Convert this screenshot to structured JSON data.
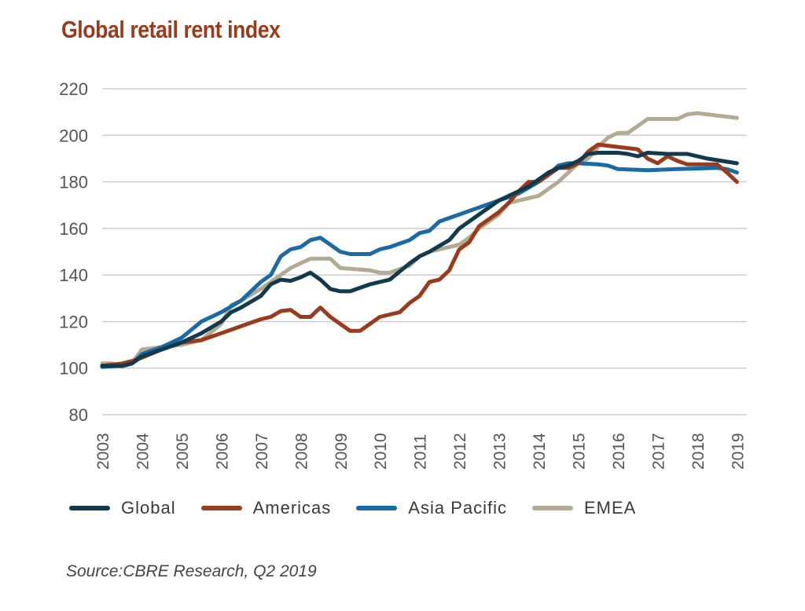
{
  "chart_data": {
    "type": "line",
    "title": "Global retail rent index",
    "xlabel": "",
    "ylabel": "",
    "ylim": [
      80,
      220
    ],
    "yticks": [
      80,
      100,
      120,
      140,
      160,
      180,
      200,
      220
    ],
    "xlim": [
      2003,
      2019.25
    ],
    "xticks": [
      "2003",
      "2004",
      "2005",
      "2006",
      "2007",
      "2008",
      "2009",
      "2010",
      "2011",
      "2012",
      "2013",
      "2014",
      "2015",
      "2016",
      "2017",
      "2018",
      "2019"
    ],
    "grid": true,
    "legend_position": "bottom",
    "series": [
      {
        "name": "Global",
        "color": "#123a4f",
        "points": [
          [
            2003.0,
            101
          ],
          [
            2003.5,
            101
          ],
          [
            2003.75,
            102
          ],
          [
            2004.0,
            105
          ],
          [
            2004.5,
            108
          ],
          [
            2005.0,
            111
          ],
          [
            2005.5,
            115
          ],
          [
            2006.0,
            120
          ],
          [
            2006.25,
            124
          ],
          [
            2006.5,
            126
          ],
          [
            2007.0,
            131
          ],
          [
            2007.25,
            136
          ],
          [
            2007.5,
            138
          ],
          [
            2007.75,
            137.5
          ],
          [
            2008.0,
            139
          ],
          [
            2008.25,
            141
          ],
          [
            2008.5,
            138
          ],
          [
            2008.75,
            134
          ],
          [
            2009.0,
            133
          ],
          [
            2009.25,
            133
          ],
          [
            2009.75,
            136
          ],
          [
            2010.25,
            138
          ],
          [
            2010.75,
            145
          ],
          [
            2011.0,
            148
          ],
          [
            2011.25,
            150
          ],
          [
            2011.75,
            155
          ],
          [
            2012.0,
            160
          ],
          [
            2012.25,
            163
          ],
          [
            2012.5,
            166
          ],
          [
            2012.75,
            169
          ],
          [
            2013.0,
            172
          ],
          [
            2013.25,
            174
          ],
          [
            2013.75,
            178
          ],
          [
            2014.0,
            181
          ],
          [
            2014.25,
            184
          ],
          [
            2014.5,
            186
          ],
          [
            2014.75,
            187
          ],
          [
            2015.0,
            189
          ],
          [
            2015.25,
            192
          ],
          [
            2015.5,
            192.5
          ],
          [
            2016.0,
            192.5
          ],
          [
            2016.25,
            192
          ],
          [
            2016.5,
            191
          ],
          [
            2016.75,
            192.5
          ],
          [
            2017.25,
            192
          ],
          [
            2017.75,
            192
          ],
          [
            2018.25,
            190
          ],
          [
            2019.0,
            188
          ]
        ]
      },
      {
        "name": "Americas",
        "color": "#9a3b1c",
        "points": [
          [
            2003.0,
            101
          ],
          [
            2003.5,
            102
          ],
          [
            2003.75,
            103
          ],
          [
            2004.0,
            104.5
          ],
          [
            2004.5,
            108
          ],
          [
            2005.0,
            111
          ],
          [
            2005.5,
            112
          ],
          [
            2006.0,
            115
          ],
          [
            2006.5,
            118
          ],
          [
            2007.0,
            121
          ],
          [
            2007.25,
            122
          ],
          [
            2007.5,
            124.5
          ],
          [
            2007.75,
            125
          ],
          [
            2008.0,
            122
          ],
          [
            2008.25,
            122
          ],
          [
            2008.5,
            126
          ],
          [
            2008.75,
            122
          ],
          [
            2009.0,
            119
          ],
          [
            2009.25,
            116
          ],
          [
            2009.5,
            116
          ],
          [
            2009.75,
            119
          ],
          [
            2010.0,
            122
          ],
          [
            2010.25,
            123
          ],
          [
            2010.5,
            124
          ],
          [
            2010.75,
            128
          ],
          [
            2011.0,
            131
          ],
          [
            2011.25,
            137
          ],
          [
            2011.5,
            138
          ],
          [
            2011.75,
            142
          ],
          [
            2012.0,
            151
          ],
          [
            2012.25,
            154
          ],
          [
            2012.5,
            161
          ],
          [
            2012.75,
            164
          ],
          [
            2013.0,
            167
          ],
          [
            2013.25,
            171
          ],
          [
            2013.5,
            176
          ],
          [
            2013.75,
            180
          ],
          [
            2014.0,
            180
          ],
          [
            2014.25,
            183
          ],
          [
            2014.5,
            186
          ],
          [
            2014.75,
            186
          ],
          [
            2015.0,
            188
          ],
          [
            2015.25,
            193
          ],
          [
            2015.5,
            196
          ],
          [
            2016.0,
            195
          ],
          [
            2016.5,
            194
          ],
          [
            2016.75,
            190
          ],
          [
            2017.0,
            188
          ],
          [
            2017.25,
            191
          ],
          [
            2017.5,
            189
          ],
          [
            2017.75,
            187.5
          ],
          [
            2018.5,
            187.5
          ],
          [
            2018.75,
            184
          ],
          [
            2019.0,
            180
          ]
        ]
      },
      {
        "name": "Asia Pacific",
        "color": "#1a6aa6",
        "points": [
          [
            2003.0,
            100.5
          ],
          [
            2003.5,
            101
          ],
          [
            2003.75,
            102
          ],
          [
            2004.0,
            106
          ],
          [
            2004.5,
            109
          ],
          [
            2005.0,
            113
          ],
          [
            2005.5,
            120
          ],
          [
            2006.0,
            124
          ],
          [
            2006.5,
            129
          ],
          [
            2007.0,
            137
          ],
          [
            2007.25,
            140
          ],
          [
            2007.5,
            148
          ],
          [
            2007.75,
            151
          ],
          [
            2008.0,
            152
          ],
          [
            2008.25,
            155
          ],
          [
            2008.5,
            156
          ],
          [
            2008.75,
            153
          ],
          [
            2009.0,
            150
          ],
          [
            2009.25,
            149
          ],
          [
            2009.75,
            149
          ],
          [
            2010.0,
            151
          ],
          [
            2010.25,
            152
          ],
          [
            2010.75,
            155
          ],
          [
            2011.0,
            158
          ],
          [
            2011.25,
            159
          ],
          [
            2011.5,
            163
          ],
          [
            2012.0,
            166
          ],
          [
            2012.5,
            169
          ],
          [
            2013.0,
            172
          ],
          [
            2013.5,
            175
          ],
          [
            2014.0,
            180
          ],
          [
            2014.25,
            183
          ],
          [
            2014.5,
            187
          ],
          [
            2014.75,
            188
          ],
          [
            2015.0,
            188
          ],
          [
            2015.5,
            187.5
          ],
          [
            2015.75,
            187
          ],
          [
            2016.0,
            185.5
          ],
          [
            2016.75,
            185
          ],
          [
            2017.5,
            185.5
          ],
          [
            2018.5,
            186
          ],
          [
            2018.75,
            185.5
          ],
          [
            2019.0,
            184
          ]
        ]
      },
      {
        "name": "EMEA",
        "color": "#b3aa94",
        "points": [
          [
            2003.0,
            102
          ],
          [
            2003.25,
            102
          ],
          [
            2003.5,
            100.5
          ],
          [
            2003.75,
            102
          ],
          [
            2004.0,
            108
          ],
          [
            2004.5,
            109
          ],
          [
            2005.0,
            110
          ],
          [
            2005.5,
            112
          ],
          [
            2006.0,
            119
          ],
          [
            2006.25,
            127
          ],
          [
            2006.5,
            129
          ],
          [
            2007.0,
            134
          ],
          [
            2007.25,
            137
          ],
          [
            2007.5,
            140
          ],
          [
            2007.75,
            143
          ],
          [
            2008.0,
            145
          ],
          [
            2008.25,
            147
          ],
          [
            2008.75,
            147
          ],
          [
            2009.0,
            143
          ],
          [
            2009.75,
            142
          ],
          [
            2010.0,
            141
          ],
          [
            2010.25,
            141
          ],
          [
            2010.75,
            144
          ],
          [
            2011.0,
            148
          ],
          [
            2011.25,
            150
          ],
          [
            2011.75,
            152
          ],
          [
            2012.0,
            153
          ],
          [
            2012.25,
            156
          ],
          [
            2012.5,
            160
          ],
          [
            2012.75,
            163
          ],
          [
            2013.0,
            166
          ],
          [
            2013.25,
            171
          ],
          [
            2013.5,
            172
          ],
          [
            2013.75,
            173
          ],
          [
            2014.0,
            174
          ],
          [
            2014.25,
            177
          ],
          [
            2014.5,
            180
          ],
          [
            2014.75,
            184
          ],
          [
            2015.0,
            188
          ],
          [
            2015.25,
            190
          ],
          [
            2015.5,
            195
          ],
          [
            2015.75,
            199
          ],
          [
            2016.0,
            201
          ],
          [
            2016.25,
            201
          ],
          [
            2016.5,
            204
          ],
          [
            2016.75,
            207
          ],
          [
            2017.0,
            207
          ],
          [
            2017.5,
            207
          ],
          [
            2017.75,
            209
          ],
          [
            2018.0,
            209.5
          ],
          [
            2018.5,
            208.5
          ],
          [
            2019.0,
            207.5
          ]
        ]
      }
    ]
  },
  "source": "Source:CBRE Research, Q2 2019"
}
